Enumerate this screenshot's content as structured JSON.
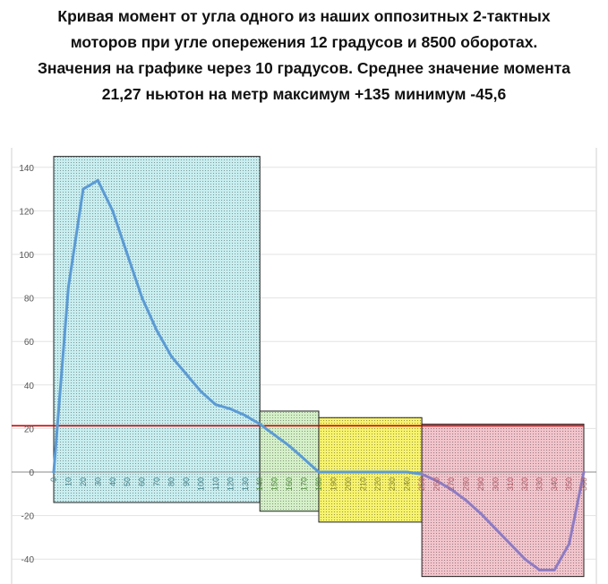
{
  "caption": {
    "line1": "Кривая момент от угла одного из наших оппозитных 2-тактных",
    "line2": "моторов при угле опережения 12 градусов и 8500 оборотах.",
    "line3": "Значения на графике через 10 градусов. Среднее значение момента",
    "line4": "21,27 ньютон на метр максимум +135 минимум -45,6"
  },
  "colors": {
    "curve": "#5b9bd5",
    "curve_tail": "#8e7cc3",
    "mean_line": "#cc0000",
    "zone1": "#c8eef0",
    "zone2": "#d4f0c8",
    "zone3": "#f7f36e",
    "zone4": "#f2c4cc"
  },
  "chart_data": {
    "type": "line",
    "title": "",
    "xlabel": "",
    "ylabel": "",
    "x": [
      0,
      10,
      20,
      30,
      40,
      50,
      60,
      70,
      80,
      90,
      100,
      110,
      120,
      130,
      140,
      150,
      160,
      170,
      180,
      190,
      200,
      210,
      220,
      230,
      240,
      250,
      260,
      270,
      280,
      290,
      300,
      310,
      320,
      330,
      340,
      350,
      360
    ],
    "series": [
      {
        "name": "",
        "values": [
          0,
          85,
          130,
          134,
          120,
          100,
          80,
          65,
          53,
          45,
          37,
          31,
          29,
          26,
          22,
          17,
          12,
          6,
          0,
          0,
          0,
          0,
          0,
          0,
          0,
          -1,
          -4,
          -8,
          -13,
          -19,
          -26,
          -33,
          -40,
          -45,
          -45,
          -33,
          0
        ]
      }
    ],
    "ylim": [
      -50,
      145
    ],
    "yticks": [
      -40,
      -20,
      0,
      20,
      40,
      60,
      80,
      100,
      120,
      140
    ],
    "xticks": [
      0,
      10,
      20,
      30,
      40,
      50,
      60,
      70,
      80,
      90,
      100,
      110,
      120,
      130,
      140,
      150,
      160,
      170,
      180,
      190,
      200,
      210,
      220,
      230,
      240,
      250,
      260,
      270,
      280,
      290,
      300,
      310,
      320,
      330,
      340,
      350,
      360
    ],
    "mean_value": 21.27,
    "gridlines": true,
    "legend": "none",
    "zones": [
      {
        "x": [
          0,
          140
        ],
        "y": [
          -14,
          145
        ],
        "color": "zone1"
      },
      {
        "x": [
          140,
          180
        ],
        "y": [
          -18,
          28
        ],
        "color": "zone2"
      },
      {
        "x": [
          180,
          250
        ],
        "y": [
          -23,
          25
        ],
        "color": "zone3"
      },
      {
        "x": [
          250,
          360
        ],
        "y": [
          -48,
          22
        ],
        "color": "zone4"
      }
    ]
  }
}
